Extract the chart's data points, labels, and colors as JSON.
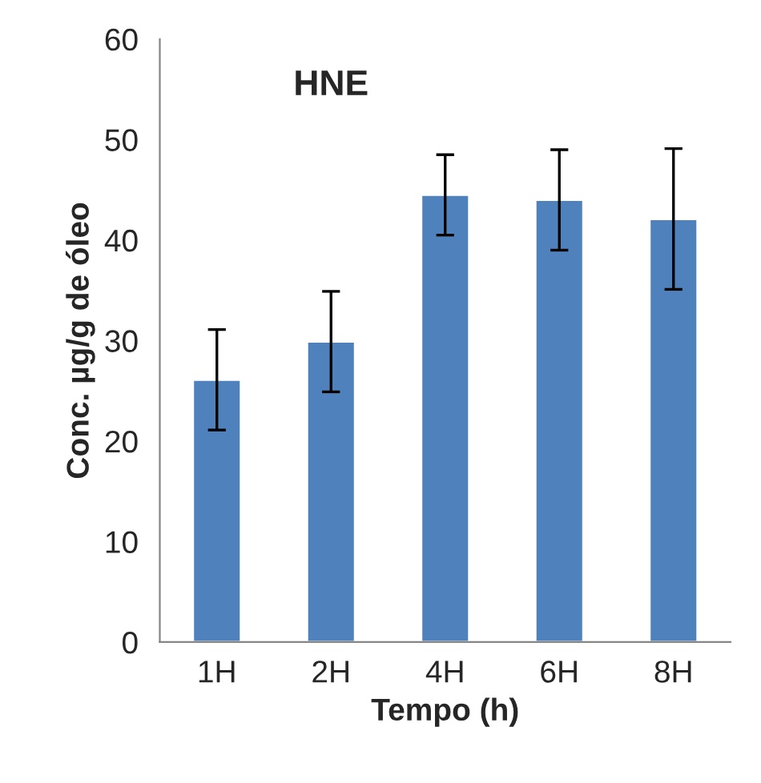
{
  "chart_data": {
    "type": "bar",
    "title": "HNE",
    "xlabel": "Tempo (h)",
    "ylabel": "Conc. µg/g de óleo",
    "categories": [
      "1H",
      "2H",
      "4H",
      "6H",
      "8H"
    ],
    "values": [
      26.1,
      29.9,
      44.5,
      44,
      42.1
    ],
    "errors": [
      5,
      5,
      4,
      5,
      7
    ],
    "color": "#4f81bd",
    "ylim": [
      0,
      60
    ],
    "yticks": [
      0,
      10,
      20,
      30,
      40,
      50,
      60
    ],
    "grid": false,
    "legend": false
  }
}
